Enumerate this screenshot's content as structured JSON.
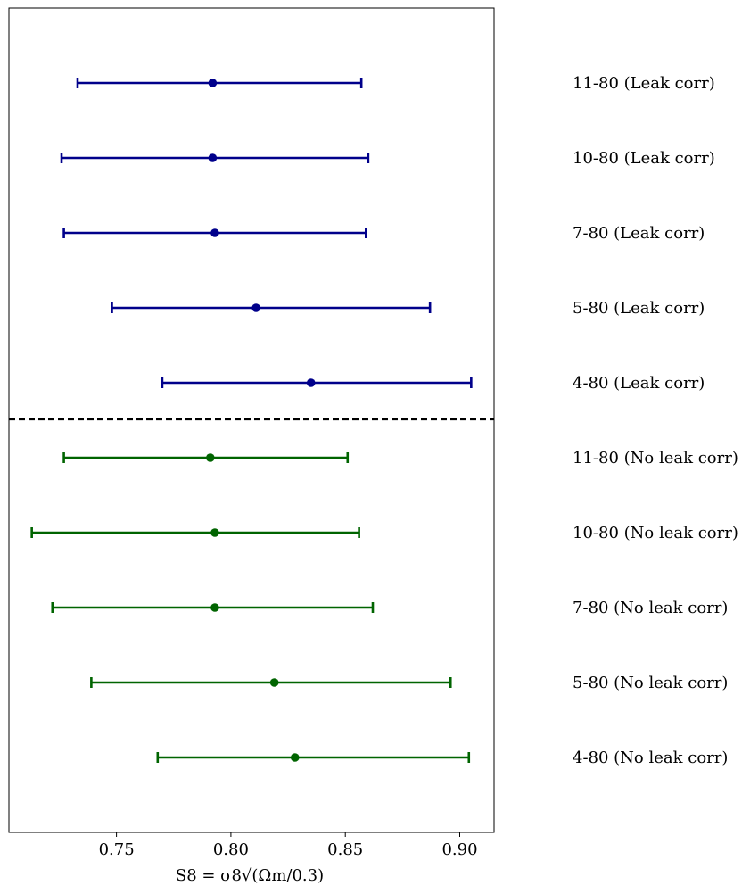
{
  "chart_data": {
    "type": "errorbar",
    "xlabel": "S8 = σ8√(Ωm/0.3)",
    "xlim": [
      0.703,
      0.915
    ],
    "xticks": [
      0.75,
      0.8,
      0.85,
      0.9
    ],
    "xtick_labels": [
      "0.75",
      "0.80",
      "0.85",
      "0.90"
    ],
    "grid": false,
    "divider_style": "dashed",
    "series": [
      {
        "color": "#00008b",
        "points": [
          {
            "label": "11-80 (Leak corr)",
            "value": 0.792,
            "low": 0.733,
            "high": 0.857
          },
          {
            "label": "10-80 (Leak corr)",
            "value": 0.792,
            "low": 0.726,
            "high": 0.86
          },
          {
            "label": "7-80 (Leak corr)",
            "value": 0.793,
            "low": 0.727,
            "high": 0.859
          },
          {
            "label": "5-80 (Leak corr)",
            "value": 0.811,
            "low": 0.748,
            "high": 0.887
          },
          {
            "label": "4-80 (Leak corr)",
            "value": 0.835,
            "low": 0.77,
            "high": 0.905
          }
        ]
      },
      {
        "color": "#006400",
        "points": [
          {
            "label": "11-80 (No leak corr)",
            "value": 0.791,
            "low": 0.727,
            "high": 0.851
          },
          {
            "label": "10-80 (No leak corr)",
            "value": 0.793,
            "low": 0.713,
            "high": 0.856
          },
          {
            "label": "7-80 (No leak corr)",
            "value": 0.793,
            "low": 0.722,
            "high": 0.862
          },
          {
            "label": "5-80 (No leak corr)",
            "value": 0.819,
            "low": 0.739,
            "high": 0.896
          },
          {
            "label": "4-80 (No leak corr)",
            "value": 0.828,
            "low": 0.768,
            "high": 0.904
          }
        ]
      }
    ]
  }
}
